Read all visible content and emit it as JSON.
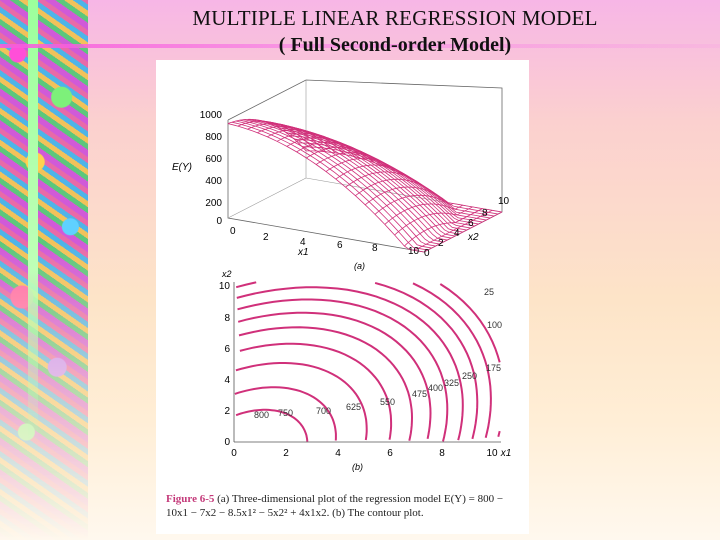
{
  "slide": {
    "title_line1": "MULTIPLE LINEAR REGRESSION MODEL",
    "title_line2": "( Full Second-order Model)"
  },
  "colors": {
    "surface": "#d0307a",
    "contour": "#d0307a",
    "axis": "#555555"
  },
  "figure": {
    "panel_a_label": "(a)",
    "panel_b_label": "(b)",
    "axis_ey_label": "E(Y)",
    "axis_x1_label": "x1",
    "axis_x2_label": "x2",
    "z_ticks": [
      "1000",
      "800",
      "600",
      "400",
      "200",
      "0"
    ],
    "x1_ticks_3d": [
      "0",
      "2",
      "4",
      "6",
      "8",
      "10"
    ],
    "x2_ticks_3d": [
      "0",
      "2",
      "4",
      "6",
      "8",
      "10"
    ],
    "contour_x_ticks": [
      "0",
      "2",
      "4",
      "6",
      "8",
      "10"
    ],
    "contour_y_ticks": [
      "10",
      "8",
      "6",
      "4",
      "2",
      "0"
    ],
    "contour_levels": [
      "25",
      "100",
      "175",
      "250",
      "325",
      "400",
      "475",
      "550",
      "625",
      "700",
      "750",
      "800"
    ],
    "caption_label": "Figure 6-5",
    "caption_text": "(a) Three-dimensional plot of the regression model E(Y) = 800 − 10x1 − 7x2 − 8.5x1² − 5x2² + 4x1x2. (b) The contour plot."
  }
}
